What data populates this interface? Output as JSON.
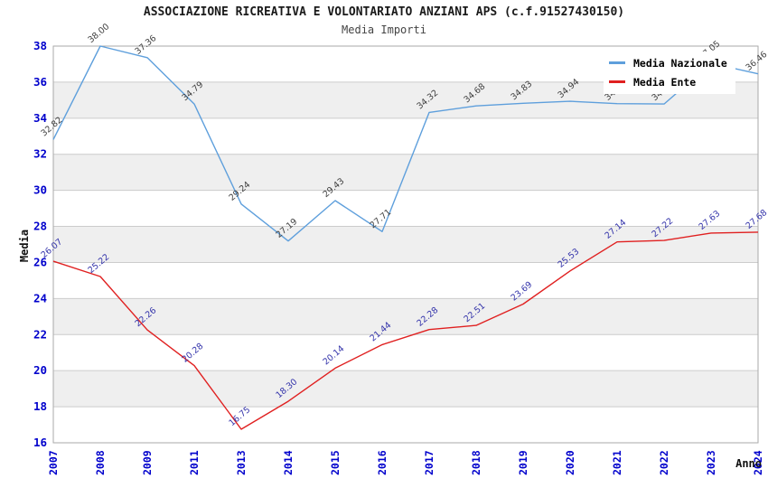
{
  "header": {
    "title": "ASSOCIAZIONE RICREATIVA E VOLONTARIATO ANZIANI APS (c.f.91527430150)",
    "subtitle": "Media Importi"
  },
  "legend": {
    "items": [
      {
        "label": "Media Nazionale",
        "color": "#5e9fdc"
      },
      {
        "label": "Media Ente",
        "color": "#e02020"
      }
    ]
  },
  "chart_data": {
    "type": "line",
    "title": "ASSOCIAZIONE RICREATIVA E VOLONTARIATO ANZIANI APS (c.f.91527430150)",
    "subtitle": "Media Importi",
    "xlabel": "Anno",
    "ylabel": "Media",
    "ylim": [
      16,
      38
    ],
    "ytick_step": 2,
    "grid": true,
    "band_fill": "#efefef",
    "gridline_color": "#cccccc",
    "frame_color": "#aaaaaa",
    "tick_label_color": "#0000cc",
    "legend_position": "top-right",
    "categories": [
      "2007",
      "2008",
      "2009",
      "2011",
      "2013",
      "2014",
      "2015",
      "2016",
      "2017",
      "2018",
      "2019",
      "2020",
      "2021",
      "2022",
      "2023",
      "2024"
    ],
    "series": [
      {
        "name": "Media Nazionale",
        "color": "#5e9fdc",
        "label_color": "#404040",
        "values": [
          32.82,
          38.0,
          37.36,
          34.79,
          29.24,
          27.19,
          29.43,
          27.71,
          34.32,
          34.68,
          34.83,
          34.94,
          34.81,
          34.79,
          37.05,
          36.46
        ],
        "occluded_label_indices": [
          12,
          13
        ]
      },
      {
        "name": "Media Ente",
        "color": "#e02020",
        "label_color": "#3333aa",
        "values": [
          26.07,
          25.22,
          22.26,
          20.28,
          16.75,
          18.3,
          20.14,
          21.44,
          22.28,
          22.51,
          23.69,
          25.53,
          27.14,
          27.22,
          27.63,
          27.68
        ]
      }
    ]
  }
}
